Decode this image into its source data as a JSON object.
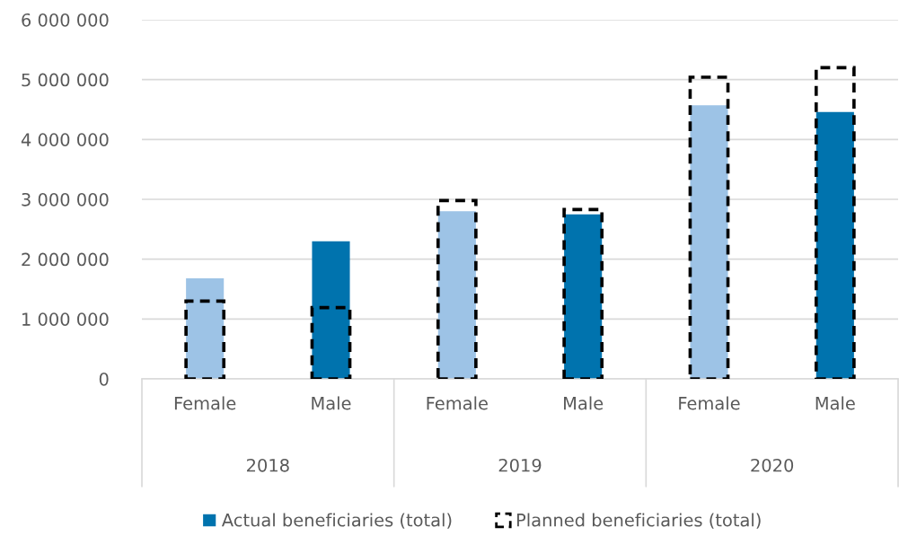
{
  "chart_data": {
    "type": "bar",
    "categories": [
      "Female",
      "Male",
      "Female",
      "Male",
      "Female",
      "Male"
    ],
    "series": [
      {
        "name": "Actual beneficiaries (total)",
        "color": "#0073ae",
        "colors": [
          "#9dc3e6",
          "#0073ae",
          "#9dc3e6",
          "#0073ae",
          "#9dc3e6",
          "#0073ae"
        ],
        "values": [
          1680000,
          2300000,
          2800000,
          2750000,
          4570000,
          4460000
        ]
      },
      {
        "name": "Planned beneficiaries (total)",
        "color": "#000000",
        "line_style": "dashed",
        "values": [
          1300000,
          1190000,
          2980000,
          2830000,
          5040000,
          5200000
        ]
      }
    ],
    "annotations": [
      "2018",
      "2019",
      "2020"
    ],
    "ylim": [
      0,
      6000000
    ],
    "yticks": [
      {
        "value": 0,
        "label": "0"
      },
      {
        "value": 1000000,
        "label": "1 000 000"
      },
      {
        "value": 2000000,
        "label": "2 000 000"
      },
      {
        "value": 3000000,
        "label": "3 000 000"
      },
      {
        "value": 4000000,
        "label": "4 000 000"
      },
      {
        "value": 5000000,
        "label": "5 000 000"
      },
      {
        "value": 6000000,
        "label": "6 000 000"
      }
    ],
    "grid": "y",
    "legend": "bottom"
  }
}
